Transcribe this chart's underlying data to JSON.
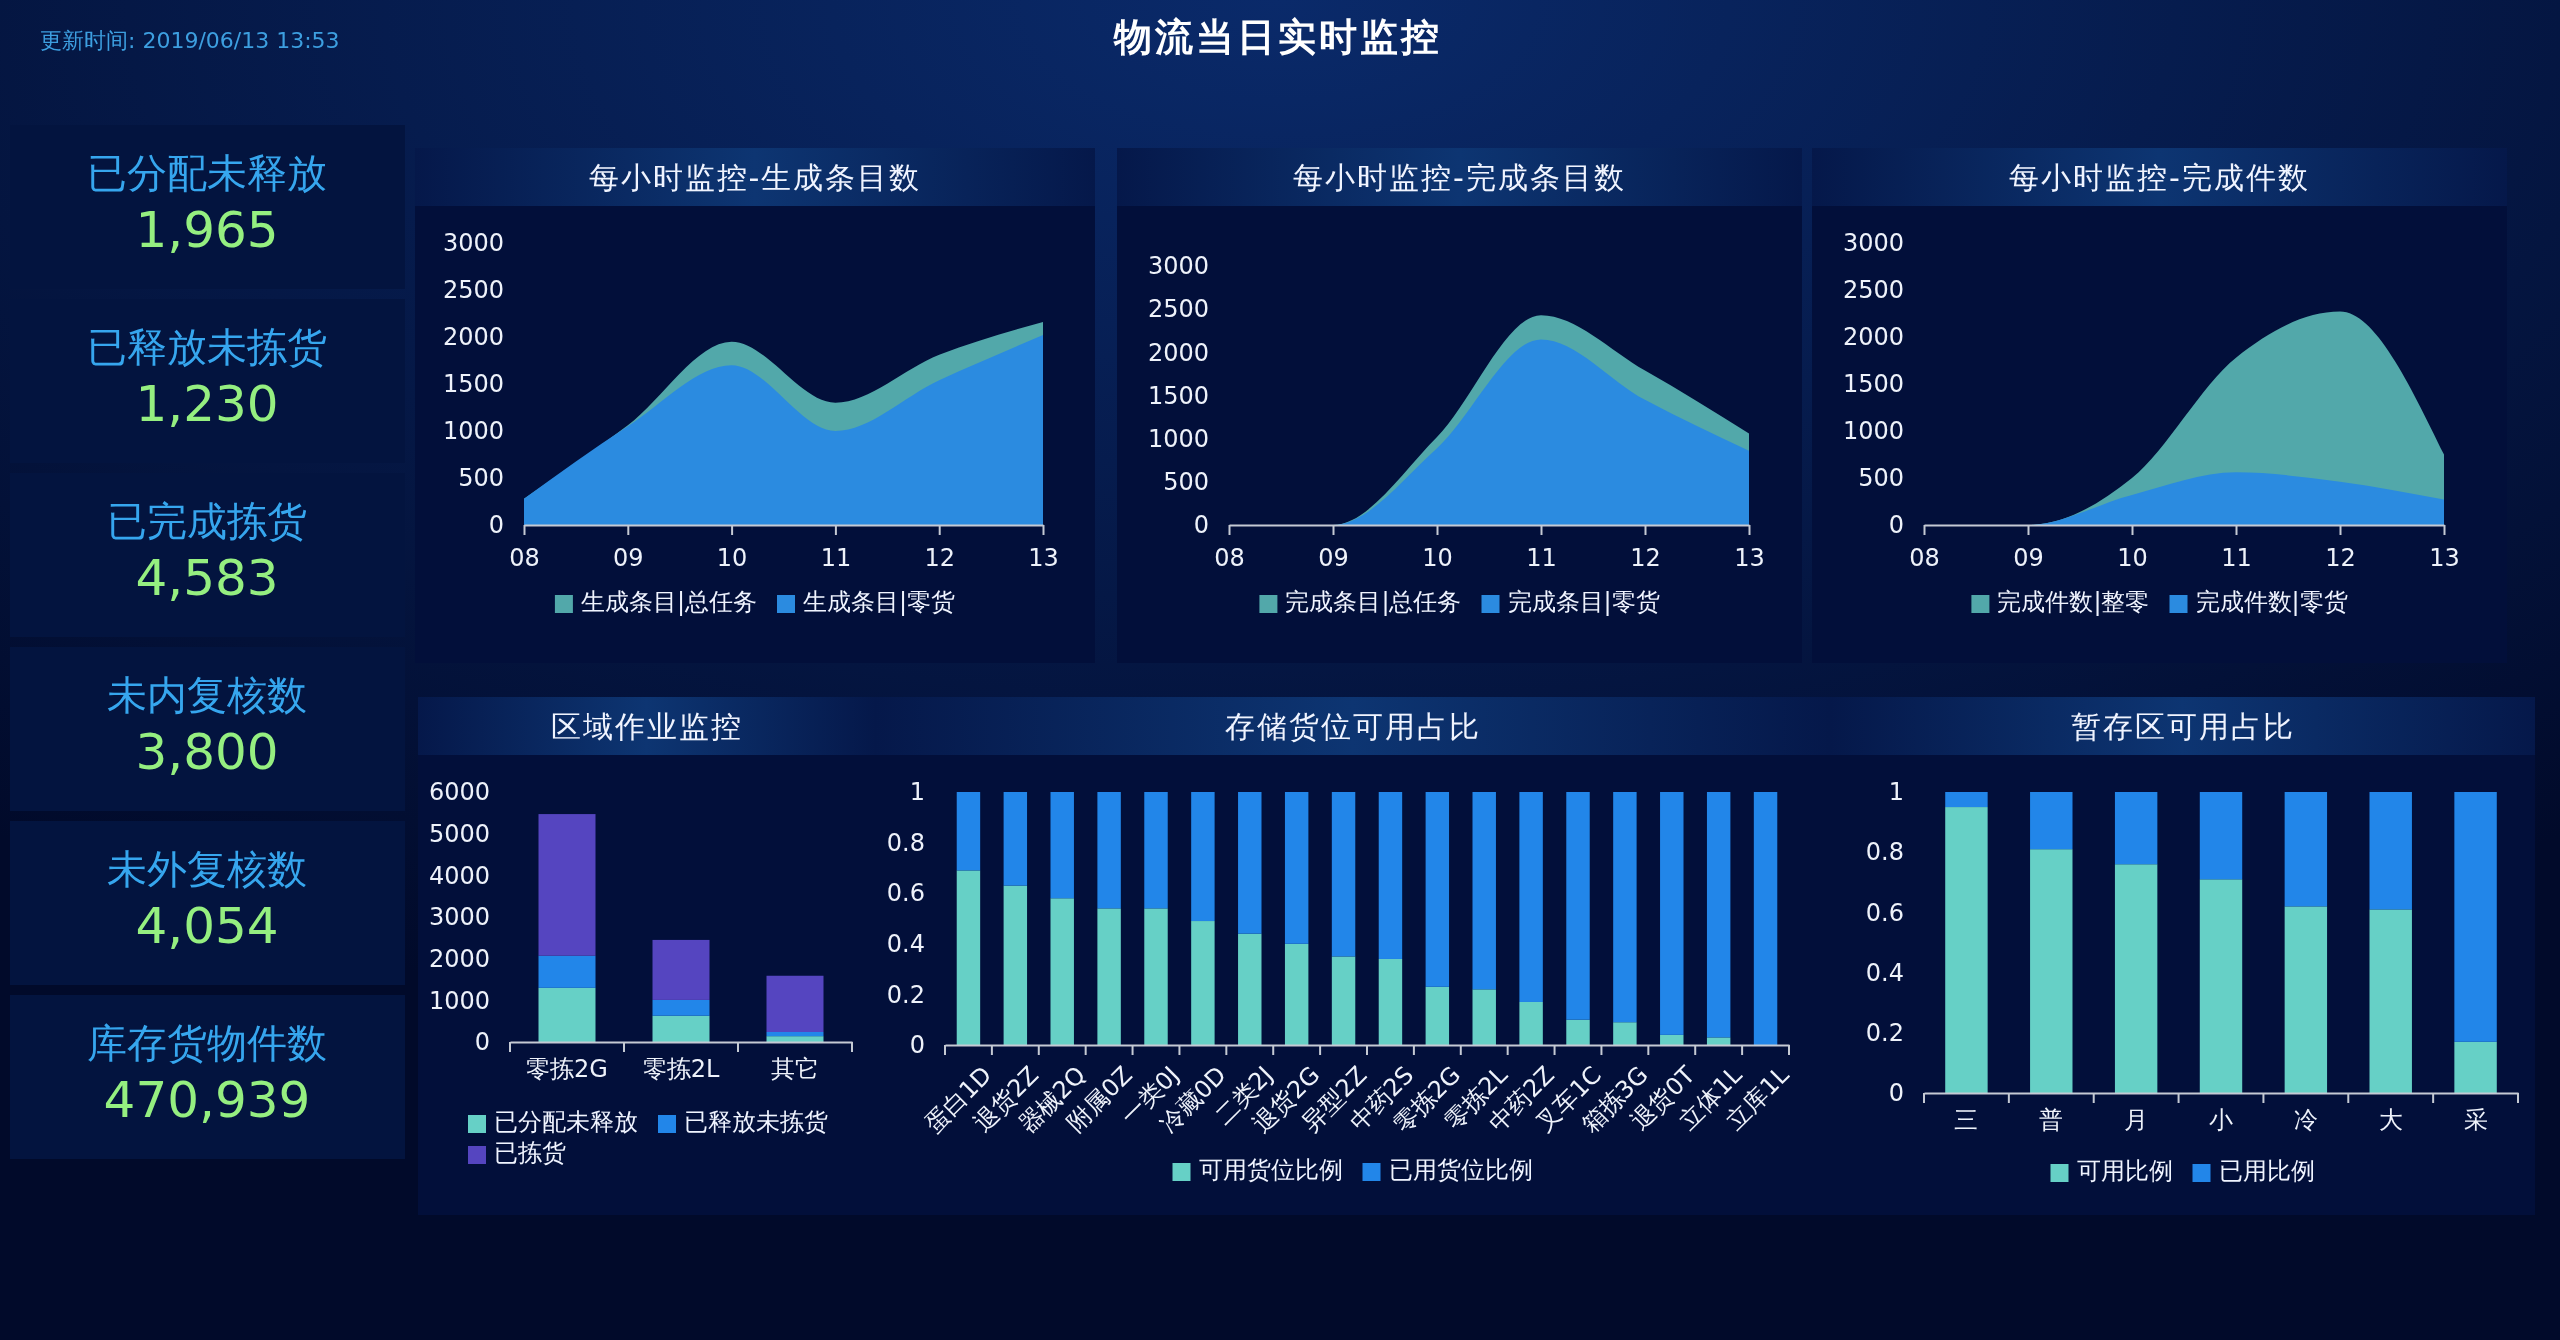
{
  "chart_data": [
    {
      "type": "other",
      "title": "物流当日实时监控",
      "annotations": [
        "更新时间: 2019/06/13 13:53"
      ],
      "categories": [
        "已分配未释放",
        "已释放未拣货",
        "已完成拣货",
        "未内复核数",
        "未外复核数",
        "库存货物件数"
      ],
      "value_labels": [
        "1,965",
        "1,230",
        "4,583",
        "3,800",
        "4,054",
        "470,939"
      ]
    },
    {
      "type": "area",
      "title": "每小时监控-生成条目数",
      "categories": [
        "08",
        "09",
        "10",
        "11",
        "12",
        "13"
      ],
      "ylim": [
        0,
        3000
      ],
      "yticks": [
        0,
        500,
        1000,
        1500,
        2000,
        2500,
        3000
      ],
      "legend": "bottom",
      "series": [
        {
          "name": "生成条目|总任务",
          "color": "#52a8aa",
          "values": [
            280,
            1060,
            1950,
            1300,
            1810,
            2160
          ]
        },
        {
          "name": "生成条目|零货",
          "color": "#2b8be0",
          "values": [
            280,
            1050,
            1700,
            1000,
            1540,
            2020
          ]
        }
      ]
    },
    {
      "type": "area",
      "title": "每小时监控-完成条目数",
      "categories": [
        "08",
        "09",
        "10",
        "11",
        "12",
        "13"
      ],
      "ylim": [
        0,
        3000
      ],
      "yticks": [
        0,
        500,
        1000,
        1500,
        2000,
        2500,
        3000
      ],
      "legend": "bottom",
      "series": [
        {
          "name": "完成条目|总任务",
          "color": "#52a8aa",
          "values": [
            0,
            0,
            1020,
            2430,
            1790,
            1060
          ]
        },
        {
          "name": "完成条目|零货",
          "color": "#2b8be0",
          "values": [
            0,
            0,
            890,
            2150,
            1450,
            860
          ]
        }
      ]
    },
    {
      "type": "area",
      "title": "每小时监控-完成件数",
      "categories": [
        "08",
        "09",
        "10",
        "11",
        "12",
        "13"
      ],
      "ylim": [
        0,
        3000
      ],
      "yticks": [
        0,
        500,
        1000,
        1500,
        2000,
        2500,
        3000
      ],
      "legend": "bottom",
      "series": [
        {
          "name": "完成件数|整零",
          "color": "#52a8aa",
          "values": [
            0,
            0,
            500,
            1780,
            2270,
            750
          ]
        },
        {
          "name": "完成件数|零货",
          "color": "#2b8be0",
          "values": [
            0,
            0,
            320,
            560,
            460,
            270
          ]
        }
      ]
    },
    {
      "type": "bar",
      "title": "区域作业监控",
      "categories": [
        "零拣2G",
        "零拣2L",
        "其它"
      ],
      "stacked": true,
      "ylim": [
        0,
        6000
      ],
      "yticks": [
        0,
        1000,
        2000,
        3000,
        4000,
        5000,
        6000
      ],
      "legend": "bottom",
      "series": [
        {
          "name": "已分配未释放",
          "color": "#66d0c6",
          "values": [
            1300,
            630,
            140
          ]
        },
        {
          "name": "已释放未拣货",
          "color": "#2286e9",
          "values": [
            770,
            380,
            100
          ]
        },
        {
          "name": "已拣货",
          "color": "#5545c0",
          "values": [
            3400,
            1440,
            1350
          ]
        }
      ]
    },
    {
      "type": "bar",
      "title": "存储货位可用占比",
      "categories": [
        "蛋白1D",
        "退货2Z",
        "器械2Q",
        "附属0Z",
        "一类0J",
        "冷藏0D",
        "二类2J",
        "退货2G",
        "异型2Z",
        "中药2S",
        "零拣2G",
        "零拣2L",
        "中药2Z",
        "叉车1C",
        "箱拣3G",
        "退货0T",
        "立体1L",
        "立库1L"
      ],
      "stacked": true,
      "ylim": [
        0,
        1
      ],
      "yticks": [
        0,
        0.2,
        0.4,
        0.6,
        0.8,
        1
      ],
      "legend": "bottom",
      "series": [
        {
          "name": "可用货位比例",
          "color": "#66d0c6",
          "values": [
            0.69,
            0.63,
            0.58,
            0.54,
            0.54,
            0.49,
            0.44,
            0.4,
            0.35,
            0.34,
            0.23,
            0.22,
            0.17,
            0.1,
            0.09,
            0.04,
            0.03,
            0
          ]
        },
        {
          "name": "已用货位比例",
          "color": "#2286e9",
          "values": [
            0.31,
            0.37,
            0.42,
            0.46,
            0.46,
            0.51,
            0.56,
            0.6,
            0.65,
            0.66,
            0.77,
            0.78,
            0.83,
            0.9,
            0.91,
            0.96,
            0.97,
            1
          ]
        }
      ]
    },
    {
      "type": "bar",
      "title": "暂存区可用占比",
      "categories": [
        "三",
        "普",
        "月",
        "小",
        "冷",
        "大",
        "采"
      ],
      "stacked": true,
      "ylim": [
        0,
        1
      ],
      "yticks": [
        0,
        0.2,
        0.4,
        0.6,
        0.8,
        1
      ],
      "legend": "bottom",
      "series": [
        {
          "name": "可用比例",
          "color": "#66d0c6",
          "values": [
            0.95,
            0.81,
            0.76,
            0.71,
            0.62,
            0.61,
            0.17
          ]
        },
        {
          "name": "已用比例",
          "color": "#2286e9",
          "values": [
            0.05,
            0.19,
            0.24,
            0.29,
            0.38,
            0.39,
            0.83
          ]
        }
      ]
    }
  ]
}
